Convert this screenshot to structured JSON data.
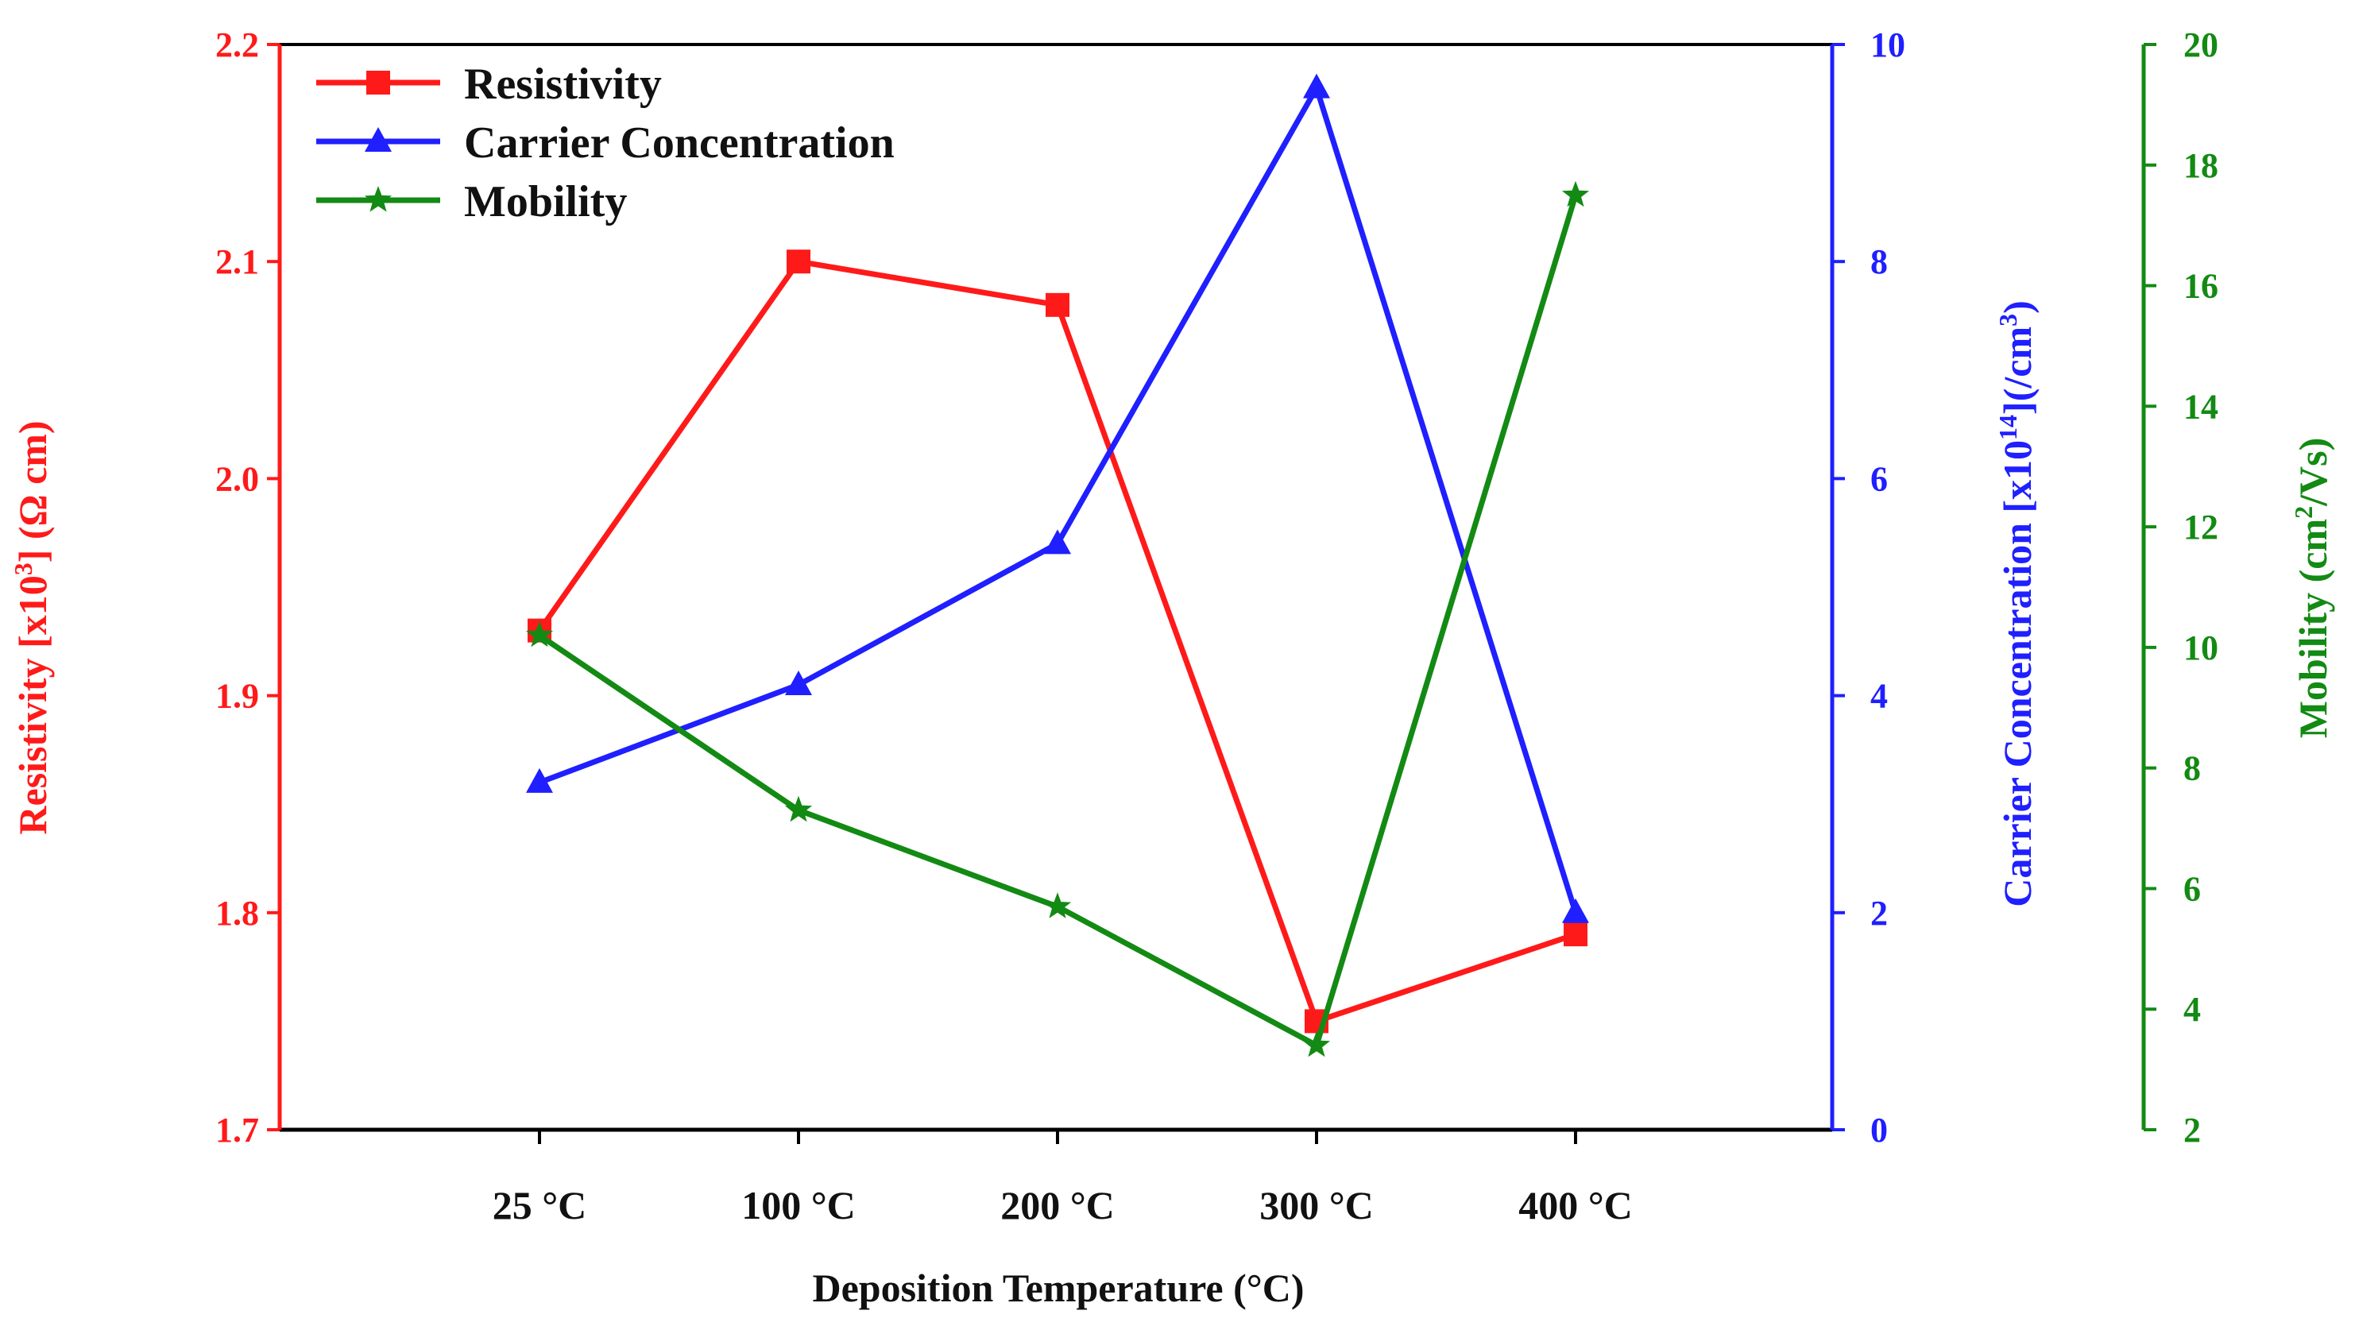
{
  "chart_data": {
    "type": "line",
    "categories": [
      "25 °C",
      "100 °C",
      "200 °C",
      "300 °C",
      "400 °C"
    ],
    "xlabel": "Deposition Temperature (°C)",
    "series": [
      {
        "name": "Resistivity",
        "axis": "left",
        "color": "#ff1a1a",
        "marker": "square",
        "values": [
          1.93,
          2.1,
          2.08,
          1.75,
          1.79
        ]
      },
      {
        "name": "Carrier Concentration",
        "axis": "right",
        "color": "#1f1fff",
        "marker": "triangle",
        "values": [
          3.2,
          4.1,
          5.4,
          9.6,
          2.0
        ]
      },
      {
        "name": "Mobility",
        "axis": "far-right",
        "color": "#138a13",
        "marker": "star",
        "values": [
          10.2,
          7.3,
          5.7,
          3.4,
          17.5
        ]
      }
    ],
    "axes": {
      "left": {
        "label_main": "Resistivity [x10",
        "label_sup": "3",
        "label_tail": "] (Ω cm)",
        "ylim": [
          1.7,
          2.2
        ],
        "ticks": [
          "1.7",
          "1.8",
          "1.9",
          "2.0",
          "2.1",
          "2.2"
        ],
        "color": "#ff1a1a"
      },
      "right": {
        "label_main": "Carrier Concentration [x10",
        "label_sup": "14",
        "label_mid": "](/cm",
        "label_sup2": "3",
        "label_tail": ")",
        "ylim": [
          0,
          10
        ],
        "ticks": [
          "0",
          "2",
          "4",
          "6",
          "8",
          "10"
        ],
        "color": "#1f1fff"
      },
      "far_right": {
        "label_main": "Mobility (cm",
        "label_sup": "2",
        "label_tail": "/Vs)",
        "ylim": [
          2,
          20
        ],
        "ticks": [
          "2",
          "4",
          "6",
          "8",
          "10",
          "12",
          "14",
          "16",
          "18",
          "20"
        ],
        "color": "#138a13"
      }
    },
    "legend_position": "top-left",
    "grid": false
  }
}
